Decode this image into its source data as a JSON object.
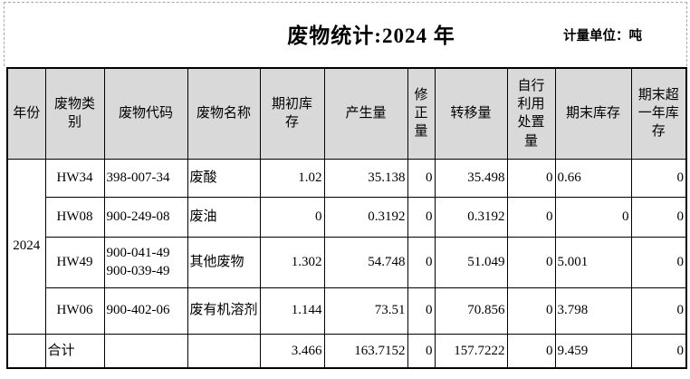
{
  "title": "废物统计:2024 年",
  "unit_label": "计量单位：吨",
  "table": {
    "columns": [
      "年份",
      "废物类\n别",
      "废物代码",
      "废物名称",
      "期初库\n存",
      "产生量",
      "修\n正\n量",
      "转移量",
      "自行\n利用\n处置\n量",
      "期末库存",
      "期末超\n一年库\n存"
    ],
    "year": "2024",
    "rows": [
      {
        "category": "HW34",
        "code": "398-007-34",
        "name": "废酸",
        "opening": "1.02",
        "generated": "35.138",
        "correction": "0",
        "transferred": "35.498",
        "self_disposal": "0",
        "closing": "0.66",
        "closing_over_year": "0"
      },
      {
        "category": "HW08",
        "code": "900-249-08",
        "name": "废油",
        "opening": "0",
        "generated": "0.3192",
        "correction": "0",
        "transferred": "0.3192",
        "self_disposal": "0",
        "closing": "0",
        "closing_over_year": "0"
      },
      {
        "category": "HW49",
        "code": "900-041-49\n900-039-49",
        "name": "其他废物",
        "opening": "1.302",
        "generated": "54.748",
        "correction": "0",
        "transferred": "51.049",
        "self_disposal": "0",
        "closing": "5.001",
        "closing_over_year": "0"
      },
      {
        "category": "HW06",
        "code": "900-402-06",
        "name": "废有机溶剂",
        "opening": "1.144",
        "generated": "73.51",
        "correction": "0",
        "transferred": "70.856",
        "self_disposal": "0",
        "closing": "3.798",
        "closing_over_year": "0"
      }
    ],
    "total": {
      "label": "合计",
      "opening": "3.466",
      "generated": "163.7152",
      "correction": "0",
      "transferred": "157.7222",
      "self_disposal": "0",
      "closing": "9.459",
      "closing_over_year": "0"
    }
  }
}
